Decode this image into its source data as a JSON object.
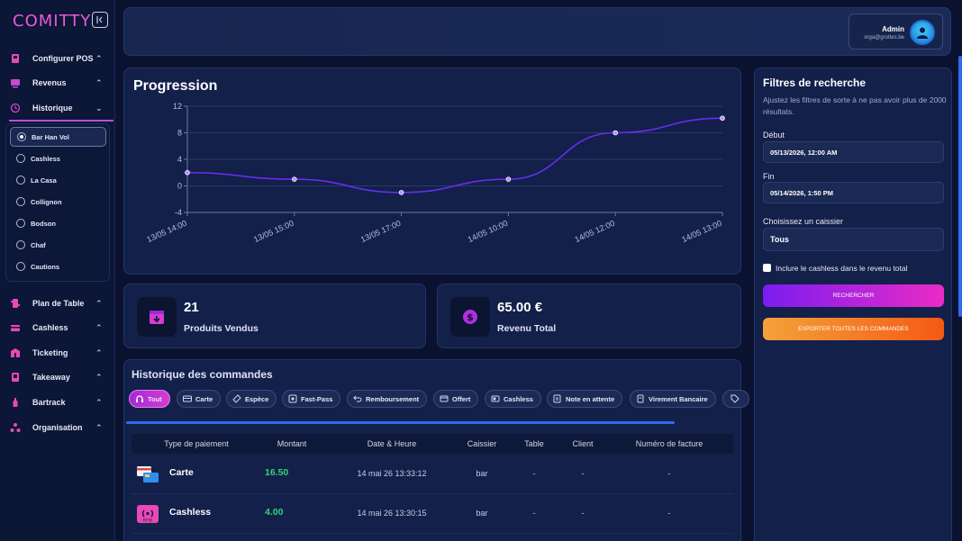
{
  "brand": "COMITTY",
  "nav": {
    "items": [
      {
        "label": "Configurer POS",
        "chev": "⌃"
      },
      {
        "label": "Revenus",
        "chev": "⌃"
      },
      {
        "label": "Historique",
        "chev": "⌄"
      }
    ],
    "sub_items": [
      {
        "label": "Bar Han Vol",
        "selected": true
      },
      {
        "label": "Cashless",
        "selected": false
      },
      {
        "label": "La Casa",
        "selected": false
      },
      {
        "label": "Collignon",
        "selected": false
      },
      {
        "label": "Bodson",
        "selected": false
      },
      {
        "label": "Chaf",
        "selected": false
      },
      {
        "label": "Cautions",
        "selected": false
      }
    ],
    "bottom_items": [
      {
        "label": "Plan de Table",
        "chev": "⌃"
      },
      {
        "label": "Cashless",
        "chev": "⌃"
      },
      {
        "label": "Ticketing",
        "chev": "⌃"
      },
      {
        "label": "Takeaway",
        "chev": "⌃"
      },
      {
        "label": "Bartrack",
        "chev": "⌃"
      },
      {
        "label": "Organisation",
        "chev": "⌃"
      }
    ]
  },
  "header": {
    "user_name": "Admin",
    "user_email": "orga@grottes.be"
  },
  "chart_data": {
    "type": "line",
    "title": "Progression",
    "x": [
      "13/05 14:00",
      "13/05 15:00",
      "13/05 17:00",
      "14/05 10:00",
      "14/05 12:00",
      "14/05 13:00"
    ],
    "values": [
      2,
      1,
      -1,
      1,
      8,
      10.2
    ],
    "ylim": [
      -4,
      12
    ],
    "yticks": [
      -4,
      0,
      4,
      8,
      12
    ],
    "grid": true,
    "color": "#6a2cf0"
  },
  "stats": {
    "sold": {
      "value": "21",
      "label": "Produits Vendus"
    },
    "revenue": {
      "value": "65.00 €",
      "label": "Revenu Total"
    }
  },
  "orders": {
    "title": "Historique des commandes",
    "filters": [
      "Tout",
      "Carte",
      "Espèce",
      "Fast-Pass",
      "Remboursement",
      "Offert",
      "Cashless",
      "Note en attente",
      "Virement Bancaire"
    ],
    "columns": [
      "Type de paiement",
      "Montant",
      "Date & Heure",
      "Caissier",
      "Table",
      "Client",
      "Numéro de facture"
    ],
    "rows": [
      {
        "type": "Carte",
        "amount": "16.50",
        "date": "14 mai 26 13:33:12",
        "cashier": "bar",
        "table": "-",
        "client": "-",
        "invoice": "-"
      },
      {
        "type": "Cashless",
        "amount": "4.00",
        "date": "14 mai 26 13:30:15",
        "cashier": "bar",
        "table": "-",
        "client": "-",
        "invoice": "-"
      }
    ]
  },
  "filters_panel": {
    "title": "Filtres de recherche",
    "description": "Ajustez les filtres de sorte à ne pas avoir plus de 2000 résultats.",
    "start_label": "Début",
    "start_value": "05/13/2026, 12:00 AM",
    "end_label": "Fin",
    "end_value": "05/14/2026, 1:50 PM",
    "cashier_label": "Choisissez un caissier",
    "cashier_value": "Tous",
    "include_cashless_label": "Inclure le cashless dans le revenu total",
    "search_button": "RECHERCHER",
    "export_button": "EXPORTER TOUTES LES COMMANDES"
  }
}
